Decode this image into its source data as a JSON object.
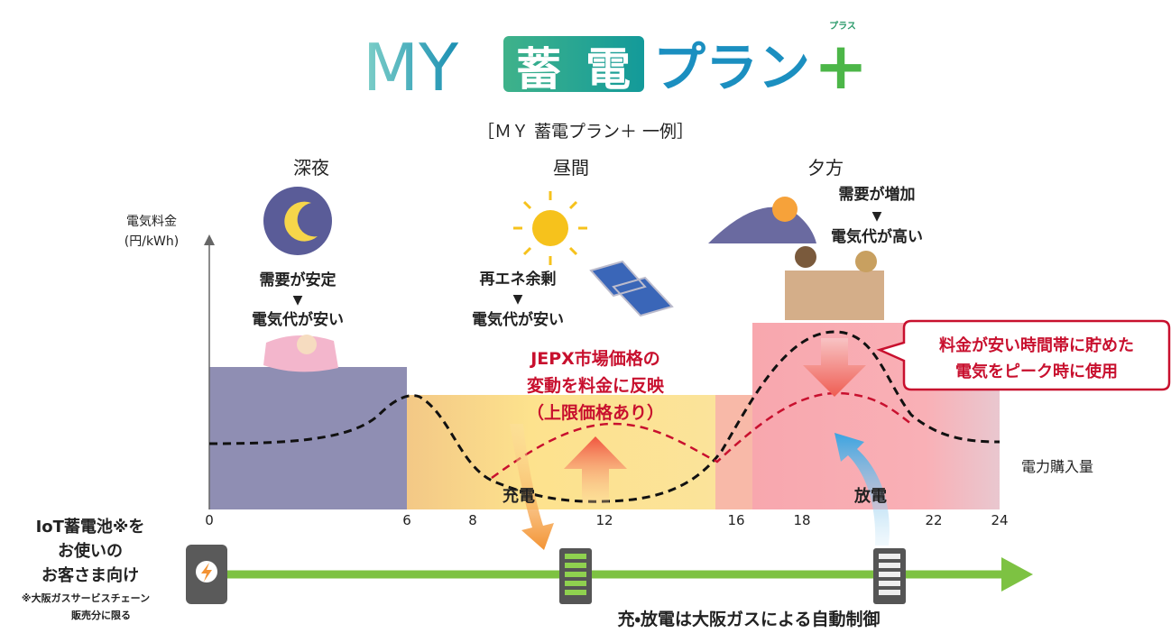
{
  "logo": {
    "my": "MY",
    "chiku": "蓄",
    "den": "電",
    "plan": "プラン",
    "ruby": "プラス",
    "plus": "+"
  },
  "subtitle": "［ＭＹ 蓄電プラン＋ 一例］",
  "periods": [
    "深夜",
    "昼間",
    "夕方"
  ],
  "y_axis_label": [
    "電気料金",
    "(円/kWh)"
  ],
  "notes": {
    "night": [
      "需要が安定",
      "▼",
      "電気代が安い"
    ],
    "day": [
      "再エネ余剰",
      "▼",
      "電気代が安い"
    ],
    "evening": [
      "需要が増加",
      "▼",
      "電気代が高い"
    ]
  },
  "jepx": [
    "JEPX市場価格の",
    "変動を料金に反映",
    "（上限価格あり）"
  ],
  "callout": [
    "料金が安い時間帯に貯めた",
    "電気をピーク時に使用"
  ],
  "curve_label": "電力購入量",
  "charge": "充電",
  "discharge": "放電",
  "xticks": [
    0,
    6,
    8,
    12,
    16,
    18,
    22,
    24
  ],
  "target": [
    "IoT蓄電池※を",
    "お使いの",
    "お客さま向け"
  ],
  "footnote": [
    "※大阪ガスサービスチェーン",
    "販売分に限る"
  ],
  "control": "充・放電は大阪ガスによる自動制御"
}
